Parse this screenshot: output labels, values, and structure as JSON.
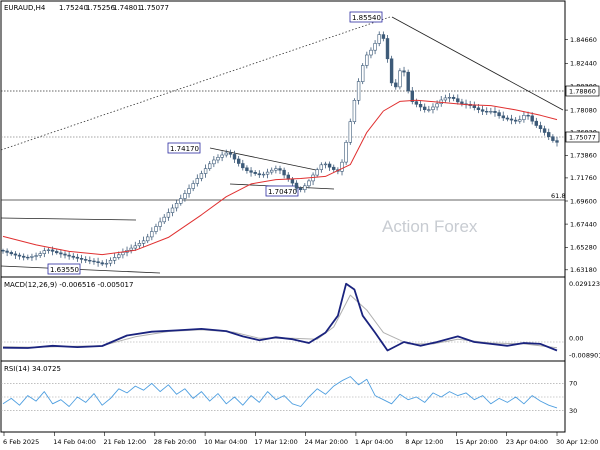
{
  "chart_data": [
    {
      "type": "candlestick",
      "header": {
        "symbol": "EURAUD,H4",
        "open": "1.75240",
        "high": "1.75256",
        "low": "1.74801",
        "close": "1.75077"
      },
      "y_ticks": [
        "1.84660",
        "1.82440",
        "1.80300",
        "1.78080",
        "1.76020",
        "1.73860",
        "1.71760",
        "1.69600",
        "1.67440",
        "1.65280",
        "1.63180"
      ],
      "ylim": [
        1.626,
        1.878
      ],
      "x_ticks": [
        "6 Feb 2025",
        "14 Feb 04:00",
        "21 Feb 12:00",
        "28 Feb 20:00",
        "10 Mar 04:00",
        "17 Mar 12:00",
        "24 Mar 20:00",
        "1 Apr 04:00",
        "8 Apr 12:00",
        "15 Apr 20:00",
        "23 Apr 04:00",
        "30 Apr 12:00"
      ],
      "price_path": [
        [
          0,
          1.65
        ],
        [
          3,
          1.646
        ],
        [
          6,
          1.643
        ],
        [
          9,
          1.6455
        ],
        [
          11,
          1.651
        ],
        [
          14,
          1.647
        ],
        [
          17,
          1.644
        ],
        [
          20,
          1.641
        ],
        [
          23,
          1.639
        ],
        [
          25,
          1.6365
        ],
        [
          27,
          1.642
        ],
        [
          29,
          1.647
        ],
        [
          32,
          1.653
        ],
        [
          35,
          1.66
        ],
        [
          37,
          1.67
        ],
        [
          40,
          1.683
        ],
        [
          43,
          1.696
        ],
        [
          46,
          1.71
        ],
        [
          49,
          1.724
        ],
        [
          51,
          1.733
        ],
        [
          53,
          1.738
        ],
        [
          55,
          1.7417
        ],
        [
          57,
          1.733
        ],
        [
          59,
          1.725
        ],
        [
          61,
          1.722
        ],
        [
          63,
          1.72
        ],
        [
          65,
          1.724
        ],
        [
          67,
          1.727
        ],
        [
          69,
          1.718
        ],
        [
          71,
          1.711
        ],
        [
          72,
          1.7047
        ],
        [
          74,
          1.712
        ],
        [
          76,
          1.723
        ],
        [
          78,
          1.732
        ],
        [
          80,
          1.726
        ],
        [
          82,
          1.723
        ],
        [
          84,
          1.76
        ],
        [
          86,
          1.8
        ],
        [
          88,
          1.83
        ],
        [
          90,
          1.839
        ],
        [
          92,
          1.8554
        ],
        [
          93,
          1.84
        ],
        [
          95,
          1.795
        ],
        [
          97,
          1.825
        ],
        [
          99,
          1.79
        ],
        [
          101,
          1.785
        ],
        [
          103,
          1.78
        ],
        [
          105,
          1.785
        ],
        [
          107,
          1.792
        ],
        [
          109,
          1.793
        ],
        [
          111,
          1.787
        ],
        [
          113,
          1.786
        ],
        [
          115,
          1.782
        ],
        [
          117,
          1.779
        ],
        [
          119,
          1.78
        ],
        [
          121,
          1.774
        ],
        [
          123,
          1.772
        ],
        [
          125,
          1.77
        ],
        [
          127,
          1.778
        ],
        [
          129,
          1.768
        ],
        [
          131,
          1.762
        ],
        [
          133,
          1.754
        ],
        [
          134,
          1.7508
        ]
      ],
      "ma_path": [
        [
          0,
          1.663
        ],
        [
          8,
          1.655
        ],
        [
          16,
          1.649
        ],
        [
          24,
          1.646
        ],
        [
          32,
          1.65
        ],
        [
          40,
          1.662
        ],
        [
          48,
          1.683
        ],
        [
          54,
          1.7
        ],
        [
          60,
          1.712
        ],
        [
          66,
          1.716
        ],
        [
          72,
          1.717
        ],
        [
          78,
          1.719
        ],
        [
          84,
          1.73
        ],
        [
          88,
          1.76
        ],
        [
          92,
          1.78
        ],
        [
          96,
          1.789
        ],
        [
          100,
          1.79
        ],
        [
          106,
          1.788
        ],
        [
          112,
          1.786
        ],
        [
          118,
          1.785
        ],
        [
          124,
          1.781
        ],
        [
          130,
          1.776
        ],
        [
          134,
          1.772
        ]
      ],
      "price_labels": [
        "1.85540",
        "1.74170",
        "1.70470",
        "1.63550"
      ],
      "current_price": "1.75077",
      "level_label": "1.78860",
      "fib_label": "61.8",
      "watermark": "Action Forex",
      "colors": {
        "bull": "#3d5a78",
        "bear": "#3d5a78",
        "ma": "#e03030",
        "tag_border": "#2a2aa0"
      }
    },
    {
      "type": "line",
      "title": "MACD(12,26,9) -0.006516 -0.005017",
      "y_ticks": [
        "0.029123",
        "0.00",
        "-0.008901"
      ],
      "ylim": [
        -0.0105,
        0.0305
      ],
      "macd": [
        [
          0,
          -0.005
        ],
        [
          6,
          -0.0052
        ],
        [
          12,
          -0.004
        ],
        [
          18,
          -0.0047
        ],
        [
          24,
          -0.0041
        ],
        [
          30,
          0.0015
        ],
        [
          36,
          0.0035
        ],
        [
          42,
          0.0042
        ],
        [
          48,
          0.005
        ],
        [
          54,
          0.0038
        ],
        [
          58,
          0.001
        ],
        [
          62,
          -0.001
        ],
        [
          66,
          0.0005
        ],
        [
          70,
          -0.0005
        ],
        [
          74,
          -0.0025
        ],
        [
          78,
          0.003
        ],
        [
          81,
          0.012
        ],
        [
          83,
          0.029
        ],
        [
          85,
          0.026
        ],
        [
          87,
          0.012
        ],
        [
          90,
          0.003
        ],
        [
          93,
          -0.0065
        ],
        [
          97,
          -0.002
        ],
        [
          101,
          -0.004
        ],
        [
          105,
          -0.002
        ],
        [
          110,
          0.001
        ],
        [
          114,
          -0.002
        ],
        [
          118,
          -0.003
        ],
        [
          122,
          -0.004
        ],
        [
          126,
          -0.0025
        ],
        [
          130,
          -0.003
        ],
        [
          134,
          -0.0065
        ]
      ],
      "signal": [
        [
          0,
          -0.0045
        ],
        [
          8,
          -0.0048
        ],
        [
          16,
          -0.0043
        ],
        [
          24,
          -0.004
        ],
        [
          32,
          0.0008
        ],
        [
          40,
          0.0036
        ],
        [
          48,
          0.0045
        ],
        [
          56,
          0.0032
        ],
        [
          62,
          0.0
        ],
        [
          70,
          0.0
        ],
        [
          76,
          -0.0005
        ],
        [
          80,
          0.006
        ],
        [
          84,
          0.023
        ],
        [
          88,
          0.015
        ],
        [
          92,
          0.003
        ],
        [
          98,
          -0.003
        ],
        [
          104,
          -0.003
        ],
        [
          110,
          -0.0005
        ],
        [
          118,
          -0.0025
        ],
        [
          126,
          -0.003
        ],
        [
          134,
          -0.005
        ]
      ],
      "colors": {
        "macd": "#1a237e",
        "signal": "#b0b0b0"
      }
    },
    {
      "type": "line",
      "title": "RSI(14) 34.0725",
      "y_ticks": [
        "70",
        "30"
      ],
      "ylim": [
        0,
        100
      ],
      "levels": [
        70,
        50,
        30
      ],
      "rsi": [
        [
          0,
          40
        ],
        [
          2,
          48
        ],
        [
          4,
          38
        ],
        [
          6,
          52
        ],
        [
          8,
          44
        ],
        [
          10,
          58
        ],
        [
          12,
          40
        ],
        [
          14,
          46
        ],
        [
          16,
          36
        ],
        [
          18,
          50
        ],
        [
          20,
          42
        ],
        [
          22,
          55
        ],
        [
          24,
          38
        ],
        [
          26,
          48
        ],
        [
          28,
          62
        ],
        [
          30,
          56
        ],
        [
          32,
          66
        ],
        [
          34,
          60
        ],
        [
          36,
          70
        ],
        [
          38,
          58
        ],
        [
          40,
          68
        ],
        [
          42,
          54
        ],
        [
          44,
          62
        ],
        [
          46,
          48
        ],
        [
          48,
          58
        ],
        [
          50,
          44
        ],
        [
          52,
          55
        ],
        [
          54,
          40
        ],
        [
          56,
          50
        ],
        [
          58,
          38
        ],
        [
          60,
          52
        ],
        [
          62,
          42
        ],
        [
          64,
          58
        ],
        [
          66,
          46
        ],
        [
          68,
          52
        ],
        [
          70,
          40
        ],
        [
          72,
          36
        ],
        [
          74,
          50
        ],
        [
          76,
          62
        ],
        [
          78,
          54
        ],
        [
          80,
          66
        ],
        [
          82,
          74
        ],
        [
          84,
          80
        ],
        [
          86,
          68
        ],
        [
          88,
          76
        ],
        [
          90,
          52
        ],
        [
          92,
          46
        ],
        [
          94,
          40
        ],
        [
          96,
          54
        ],
        [
          98,
          46
        ],
        [
          100,
          50
        ],
        [
          102,
          42
        ],
        [
          104,
          56
        ],
        [
          106,
          50
        ],
        [
          108,
          58
        ],
        [
          110,
          52
        ],
        [
          112,
          56
        ],
        [
          114,
          46
        ],
        [
          116,
          52
        ],
        [
          118,
          40
        ],
        [
          120,
          48
        ],
        [
          122,
          42
        ],
        [
          124,
          50
        ],
        [
          126,
          40
        ],
        [
          128,
          52
        ],
        [
          130,
          44
        ],
        [
          132,
          38
        ],
        [
          134,
          34
        ]
      ],
      "colors": {
        "rsi": "#4f9fe0",
        "level": "#9a9a9a"
      }
    }
  ]
}
